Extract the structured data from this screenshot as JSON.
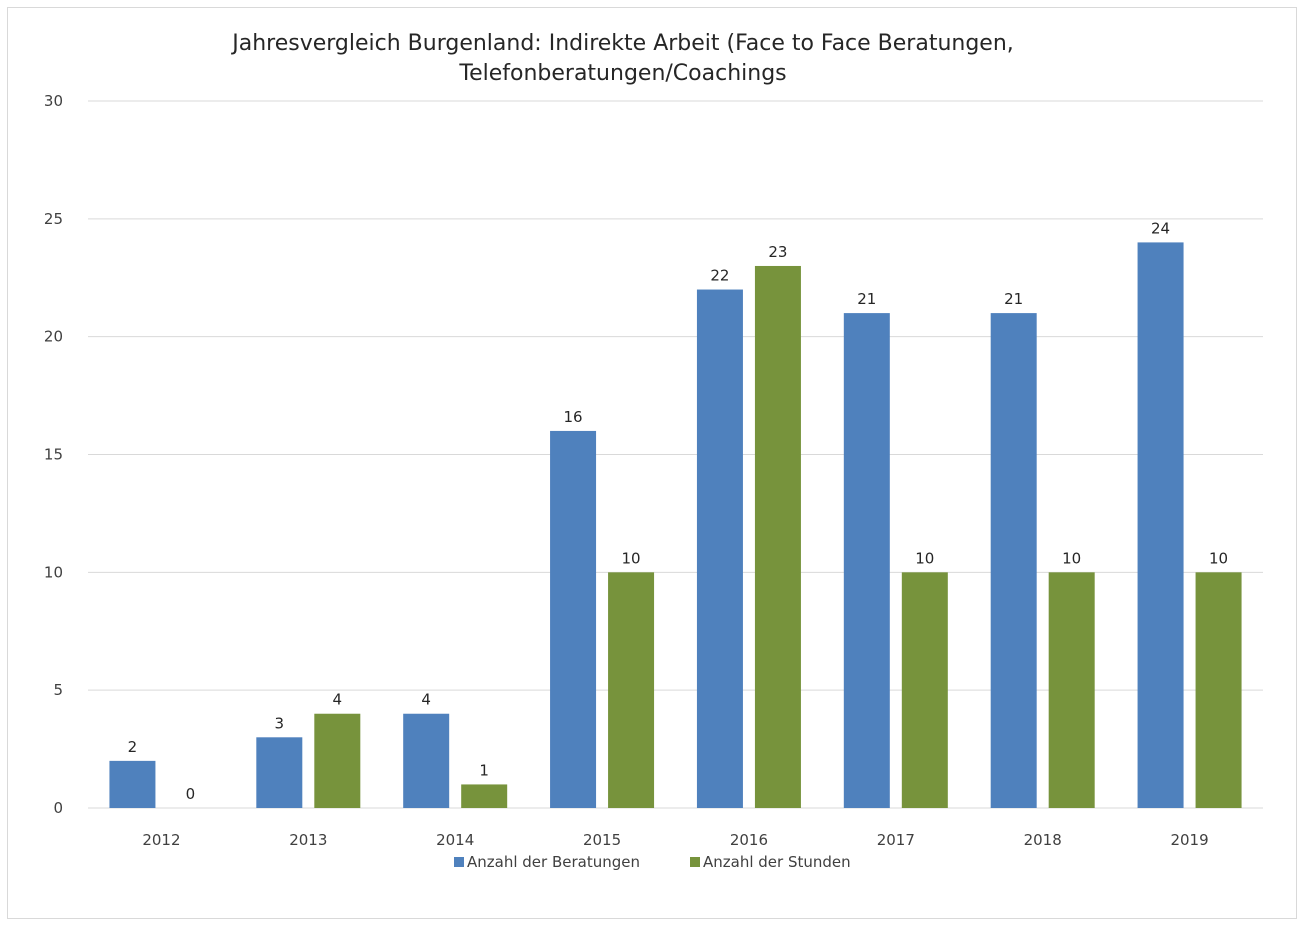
{
  "chart_data": {
    "type": "bar",
    "title": [
      "Jahresvergleich Burgenland: Indirekte Arbeit (Face to Face Beratungen,",
      "Telefonberatungen/Coachings"
    ],
    "categories": [
      "2012",
      "2013",
      "2014",
      "2015",
      "2016",
      "2017",
      "2018",
      "2019"
    ],
    "series": [
      {
        "name": "Anzahl der Beratungen",
        "color": "#4f81bd",
        "values": [
          2,
          3,
          4,
          16,
          22,
          21,
          21,
          24
        ]
      },
      {
        "name": "Anzahl der Stunden",
        "color": "#77933c",
        "values": [
          0,
          4,
          1,
          10,
          23,
          10,
          10,
          10
        ]
      }
    ],
    "ylim": [
      0,
      30
    ],
    "yticks": [
      "0",
      "5",
      "10",
      "15",
      "20",
      "25",
      "30"
    ],
    "grid": true,
    "legend_position": "bottom"
  }
}
